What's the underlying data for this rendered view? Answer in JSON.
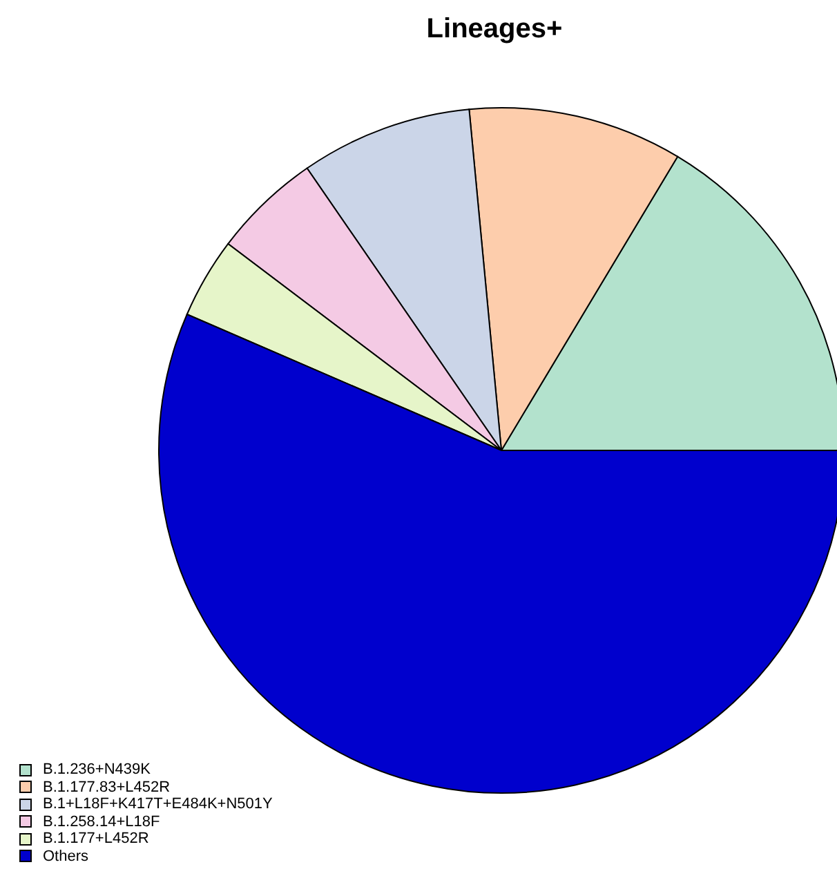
{
  "chart_data": {
    "type": "pie",
    "title": "Lineages+",
    "categories": [
      "B.1.236+N439K",
      "B.1.177.83+L452R",
      "B.1+L18F+K417T+E484K+N501Y",
      "B.1.258.14+L18F",
      "B.1.177+L452R",
      "Others"
    ],
    "values": [
      16.4,
      10.1,
      8.1,
      5.1,
      3.8,
      56.5
    ],
    "colors": [
      "#b3e2cd",
      "#fdcdac",
      "#cbd5e8",
      "#f4cae4",
      "#e6f5c9",
      "#0000cd"
    ],
    "legend": "bottom left"
  }
}
